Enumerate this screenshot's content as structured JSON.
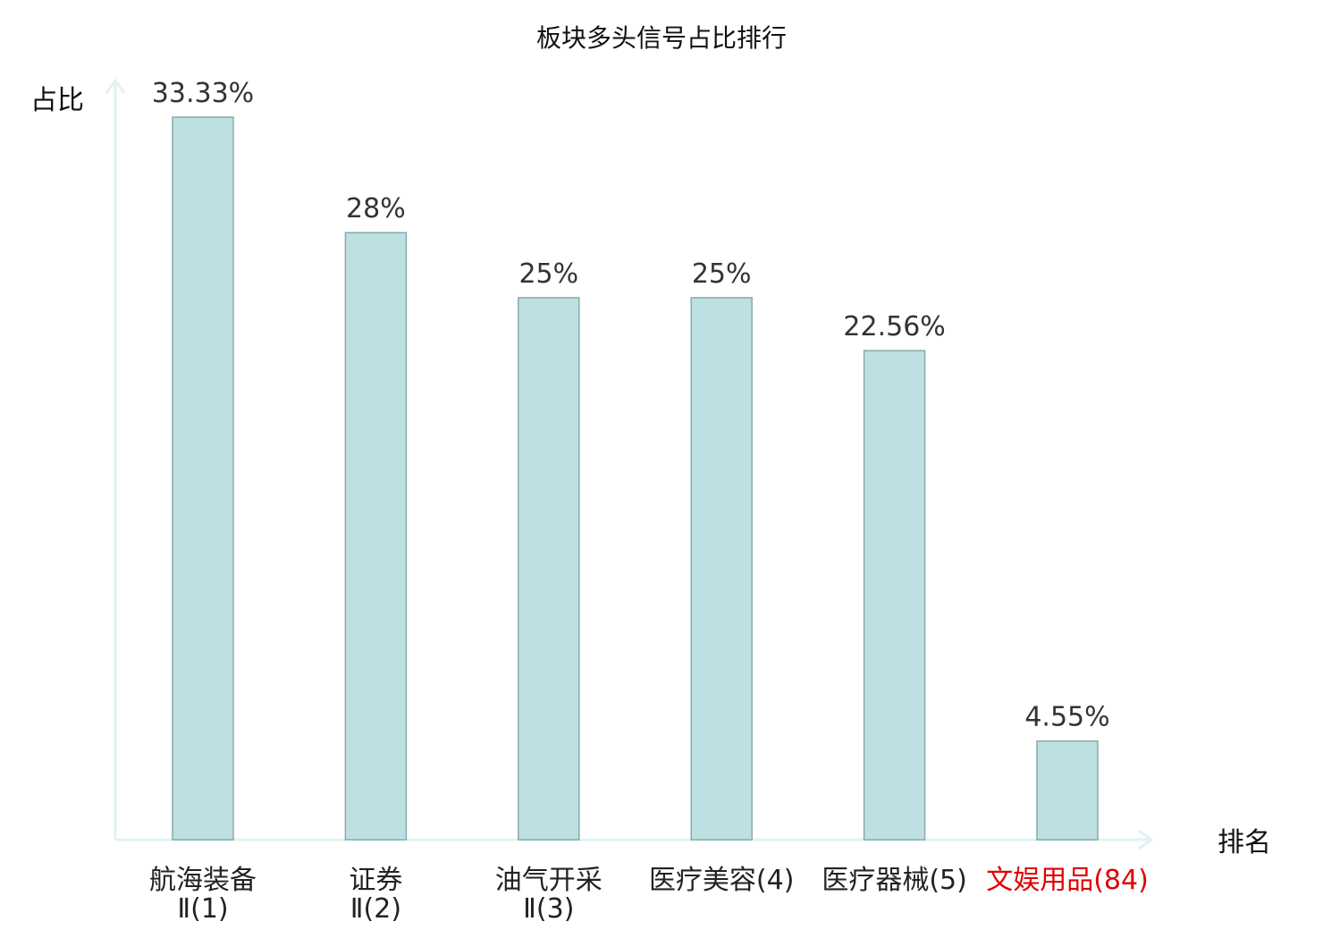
{
  "chart_data": {
    "type": "bar",
    "title": "板块多头信号占比排行",
    "ylabel": "占比",
    "xlabel": "排名",
    "ylim": [
      0,
      35
    ],
    "grid": false,
    "legend": "none",
    "colors": {
      "bar_fill": "#bde0e2",
      "bar_stroke": "#8aaaa9",
      "axis": "#e0f2f1",
      "highlight": "#e00000"
    },
    "categories": [
      {
        "name": "航海装备",
        "rank": "Ⅱ(1)",
        "highlight": false
      },
      {
        "name": "证券",
        "rank": "Ⅱ(2)",
        "highlight": false
      },
      {
        "name": "油气开采",
        "rank": "Ⅱ(3)",
        "highlight": false
      },
      {
        "name": "医疗美容",
        "rank": "(4)",
        "highlight": false
      },
      {
        "name": "医疗器械",
        "rank": "(5)",
        "highlight": false
      },
      {
        "name": "文娱用品",
        "rank": "(84)",
        "highlight": true
      }
    ],
    "values": [
      33.33,
      28,
      25,
      25,
      22.56,
      4.55
    ],
    "value_labels": [
      "33.33%",
      "28%",
      "25%",
      "25%",
      "22.56%",
      "4.55%"
    ]
  }
}
